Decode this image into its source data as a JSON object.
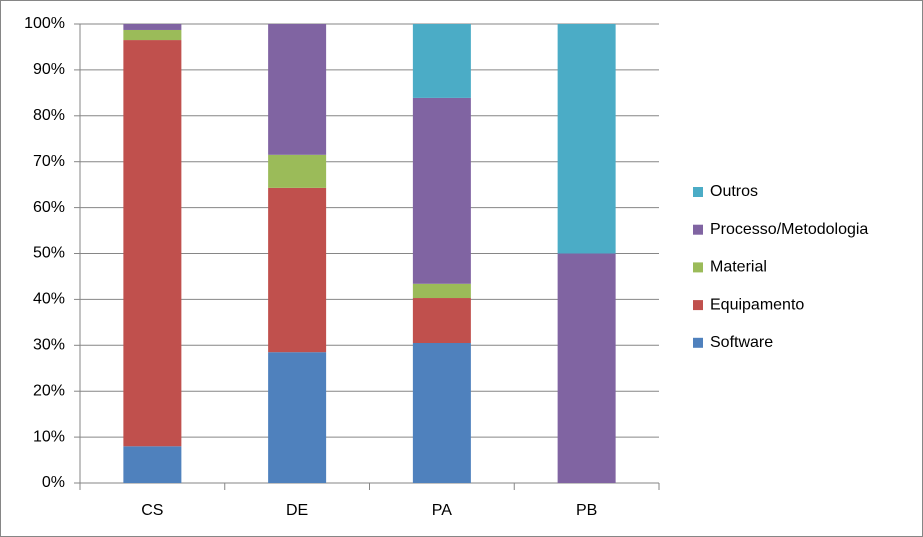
{
  "chart_data": {
    "type": "stacked-bar",
    "categories": [
      "CS",
      "DE",
      "PA",
      "PB"
    ],
    "series": [
      {
        "name": "Software",
        "color": "#4f81bd",
        "values": [
          8,
          28.5,
          30.5,
          0
        ]
      },
      {
        "name": "Equipamento",
        "color": "#c0504d",
        "values": [
          88.5,
          35.8,
          9.8,
          0
        ]
      },
      {
        "name": "Material",
        "color": "#9bbb59",
        "values": [
          2.2,
          7.2,
          3.1,
          0
        ]
      },
      {
        "name": "Processo/Metodologia",
        "color": "#8064a2",
        "values": [
          1.3,
          28.5,
          40.5,
          50
        ]
      },
      {
        "name": "Outros",
        "color": "#4bacc6",
        "values": [
          0,
          0,
          16.1,
          50
        ]
      }
    ],
    "ylim": [
      0,
      100
    ],
    "yticks": [
      {
        "value": 0,
        "label": "0%"
      },
      {
        "value": 10,
        "label": "10%"
      },
      {
        "value": 20,
        "label": "20%"
      },
      {
        "value": 30,
        "label": "30%"
      },
      {
        "value": 40,
        "label": "40%"
      },
      {
        "value": 50,
        "label": "50%"
      },
      {
        "value": 60,
        "label": "60%"
      },
      {
        "value": 70,
        "label": "70%"
      },
      {
        "value": 80,
        "label": "80%"
      },
      {
        "value": 90,
        "label": "90%"
      },
      {
        "value": 100,
        "label": "100%"
      }
    ],
    "grid": true,
    "legend": "right"
  }
}
